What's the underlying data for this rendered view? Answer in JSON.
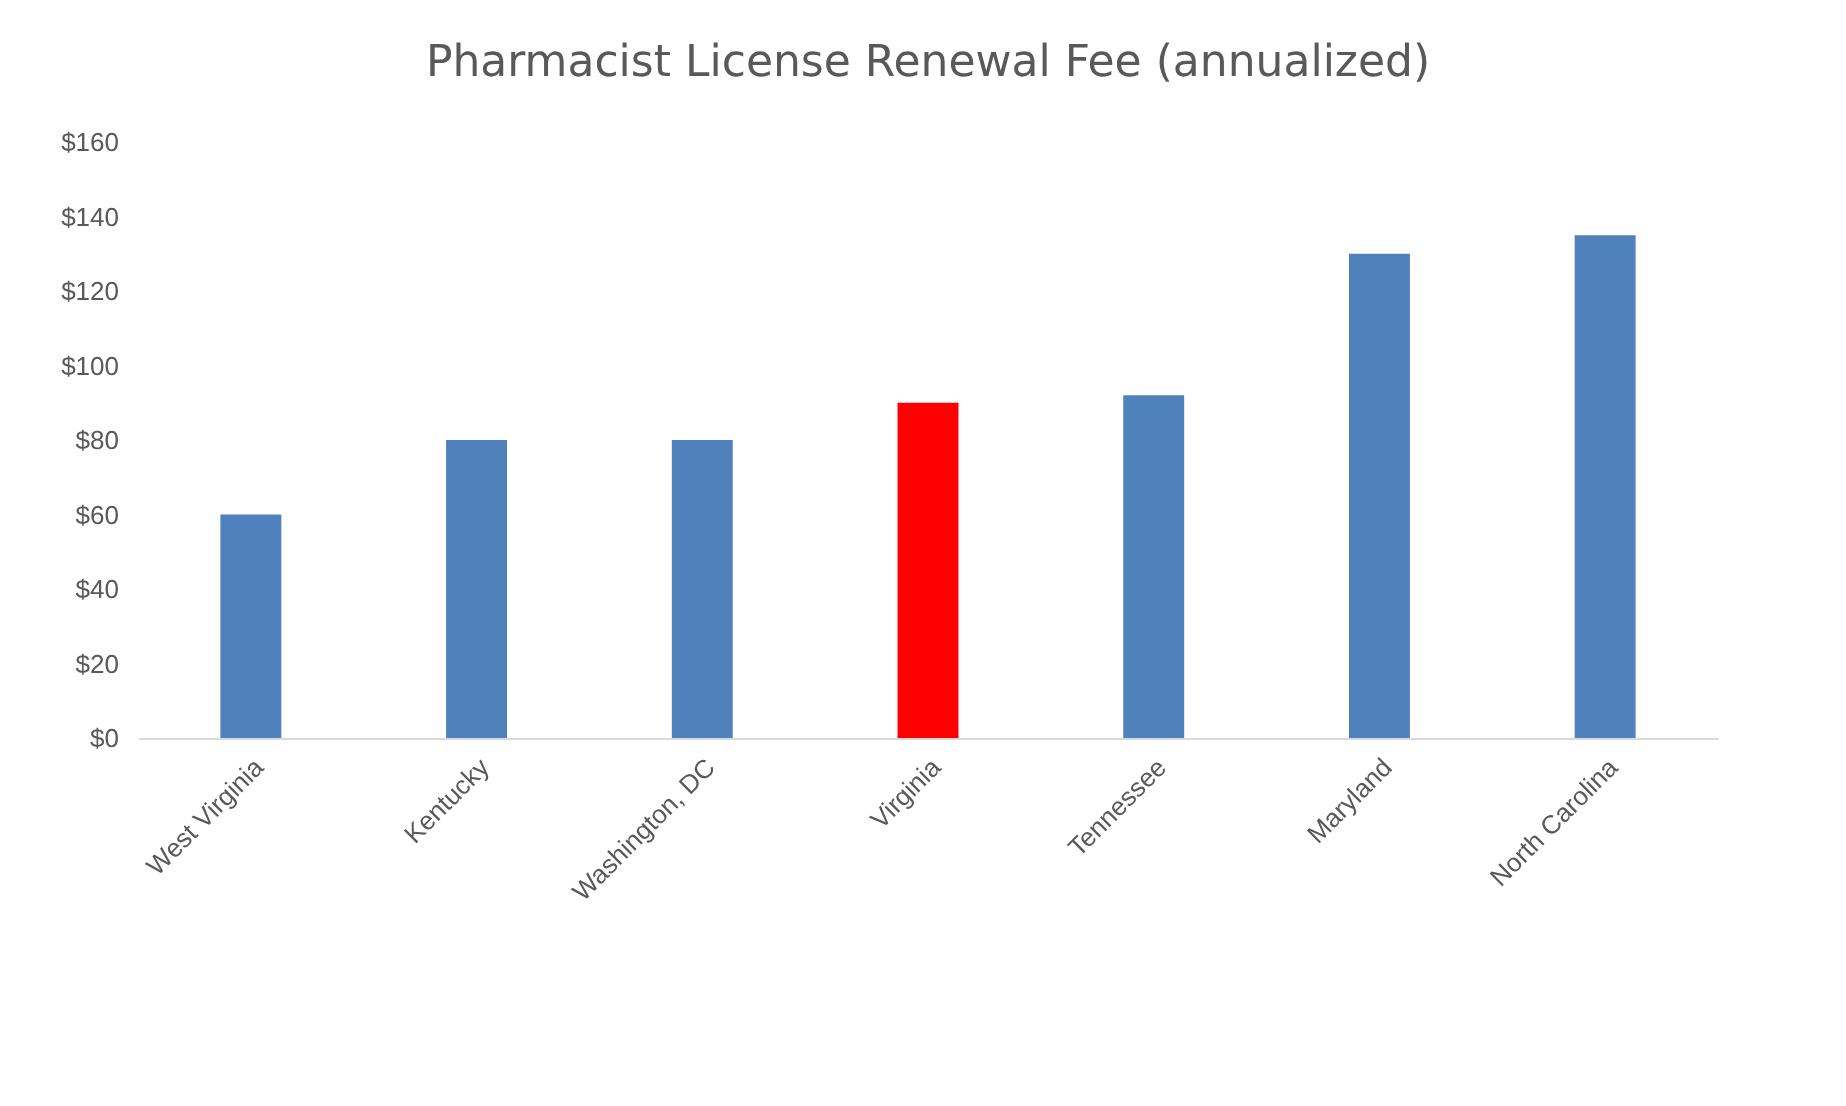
{
  "chart_data": {
    "type": "bar",
    "title": "Pharmacist License Renewal Fee (annualized)",
    "categories": [
      "West Virginia",
      "Kentucky",
      "Washington, DC",
      "Virginia",
      "Tennessee",
      "Maryland",
      "North Carolina"
    ],
    "values": [
      60,
      80,
      80,
      90,
      92,
      130,
      135
    ],
    "colors": [
      "#4f81bd",
      "#4f81bd",
      "#4f81bd",
      "#ff0000",
      "#4f81bd",
      "#4f81bd",
      "#4f81bd"
    ],
    "ylim": [
      0,
      160
    ],
    "yticks": [
      {
        "value": 0,
        "label": "$0"
      },
      {
        "value": 20,
        "label": "$20"
      },
      {
        "value": 40,
        "label": "$40"
      },
      {
        "value": 60,
        "label": "$60"
      },
      {
        "value": 80,
        "label": "$80"
      },
      {
        "value": 100,
        "label": "$100"
      },
      {
        "value": 120,
        "label": "$120"
      },
      {
        "value": 140,
        "label": "$140"
      },
      {
        "value": 160,
        "label": "$160"
      }
    ],
    "grid": false
  }
}
